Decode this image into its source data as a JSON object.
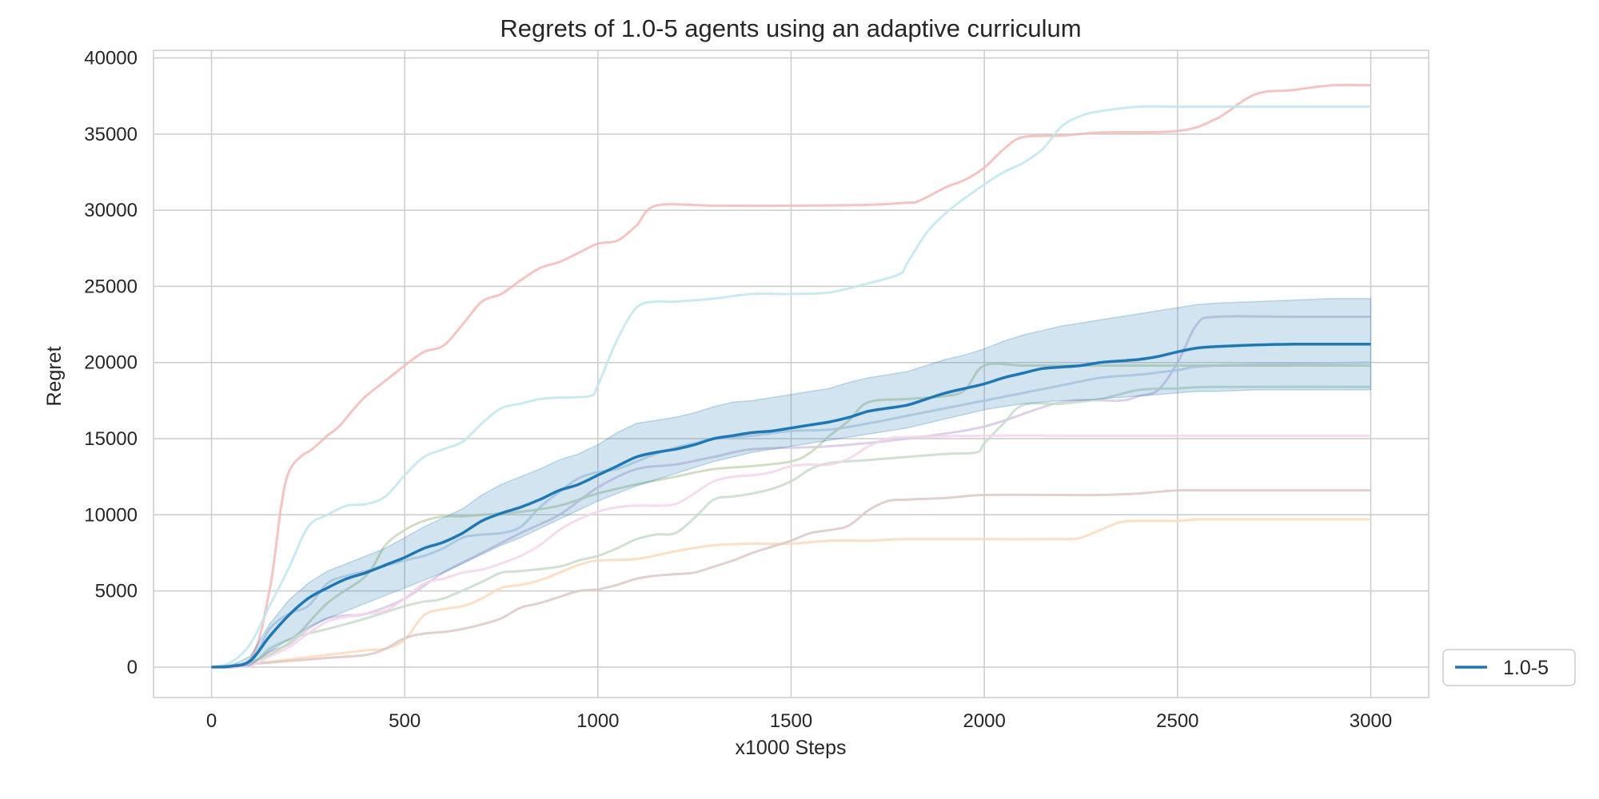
{
  "chart_data": {
    "type": "line",
    "title": "Regrets of 1.0-5 agents using an adaptive curriculum",
    "xlabel": "x1000 Steps",
    "ylabel": "Regret",
    "xlim": [
      -150,
      3150
    ],
    "ylim": [
      -2000,
      40500
    ],
    "xticks": [
      0,
      500,
      1000,
      1500,
      2000,
      2500,
      3000
    ],
    "yticks": [
      0,
      5000,
      10000,
      15000,
      20000,
      25000,
      30000,
      35000,
      40000
    ],
    "grid": true,
    "legend": {
      "placement": "lower-right-outside",
      "entries": [
        "1.0-5"
      ]
    },
    "mean_series": {
      "name": "1.0-5",
      "color": "#1f77b4",
      "x": [
        0,
        50,
        100,
        150,
        200,
        250,
        300,
        350,
        400,
        450,
        500,
        550,
        600,
        650,
        700,
        750,
        800,
        850,
        900,
        950,
        1000,
        1050,
        1100,
        1150,
        1200,
        1250,
        1300,
        1350,
        1400,
        1450,
        1500,
        1550,
        1600,
        1650,
        1700,
        1750,
        1800,
        1850,
        1900,
        1950,
        2000,
        2050,
        2100,
        2150,
        2200,
        2250,
        2300,
        2350,
        2400,
        2450,
        2500,
        2550,
        2600,
        2700,
        2800,
        2900,
        3000
      ],
      "y": [
        0,
        50,
        400,
        2000,
        3400,
        4500,
        5200,
        5800,
        6200,
        6700,
        7200,
        7800,
        8200,
        8800,
        9600,
        10100,
        10500,
        11000,
        11600,
        12000,
        12600,
        13200,
        13800,
        14100,
        14300,
        14600,
        15000,
        15200,
        15400,
        15500,
        15700,
        15900,
        16100,
        16400,
        16800,
        17000,
        17200,
        17600,
        18000,
        18300,
        18600,
        19000,
        19300,
        19600,
        19700,
        19800,
        20000,
        20100,
        20200,
        20400,
        20700,
        20950,
        21050,
        21150,
        21200,
        21200,
        21200
      ],
      "lower": [
        0,
        0,
        100,
        1000,
        1800,
        2600,
        3200,
        3700,
        4200,
        4700,
        5200,
        5700,
        6200,
        6800,
        7400,
        8000,
        8500,
        9100,
        9700,
        10300,
        10900,
        11400,
        11900,
        12300,
        12700,
        13100,
        13500,
        13800,
        14100,
        14300,
        14500,
        14700,
        14900,
        15100,
        15300,
        15500,
        15700,
        16000,
        16300,
        16600,
        16900,
        17100,
        17300,
        17400,
        17500,
        17500,
        17600,
        17700,
        17800,
        17900,
        18000,
        18100,
        18100,
        18200,
        18200,
        18200,
        18200
      ],
      "upper": [
        0,
        100,
        700,
        2800,
        4400,
        5500,
        6300,
        6800,
        7300,
        7800,
        8500,
        9200,
        9800,
        10400,
        11300,
        12000,
        12500,
        13000,
        13600,
        14000,
        14600,
        15400,
        16000,
        16200,
        16400,
        16700,
        17100,
        17400,
        17500,
        17700,
        17900,
        18100,
        18300,
        18700,
        19000,
        19200,
        19400,
        19800,
        20200,
        20500,
        20900,
        21400,
        21800,
        22100,
        22400,
        22600,
        22800,
        23000,
        23200,
        23400,
        23600,
        23800,
        23900,
        24000,
        24100,
        24200,
        24200
      ]
    },
    "runs": [
      {
        "color": "#f4b9b9",
        "x": [
          0,
          100,
          150,
          180,
          200,
          230,
          260,
          300,
          330,
          370,
          400,
          450,
          500,
          550,
          600,
          650,
          700,
          750,
          800,
          850,
          900,
          950,
          1000,
          1050,
          1100,
          1150,
          1300,
          1500,
          1700,
          1800,
          1830,
          1900,
          1950,
          2000,
          2050,
          2100,
          2200,
          2300,
          2500,
          2600,
          2700,
          2800,
          2900,
          3000
        ],
        "y": [
          0,
          500,
          5000,
          10500,
          12800,
          13800,
          14300,
          15200,
          15800,
          17000,
          17800,
          18800,
          19800,
          20700,
          21100,
          22500,
          24000,
          24500,
          25400,
          26200,
          26600,
          27200,
          27800,
          28000,
          29000,
          30300,
          30300,
          30300,
          30350,
          30500,
          30600,
          31500,
          32000,
          32800,
          34000,
          34800,
          34900,
          35100,
          35200,
          36000,
          37600,
          37900,
          38200,
          38200
        ]
      },
      {
        "color": "#bfe6ee",
        "x": [
          0,
          50,
          100,
          150,
          200,
          250,
          300,
          350,
          400,
          450,
          500,
          550,
          600,
          650,
          700,
          750,
          800,
          850,
          900,
          980,
          1000,
          1050,
          1100,
          1150,
          1200,
          1300,
          1400,
          1500,
          1600,
          1700,
          1780,
          1800,
          1850,
          1900,
          1950,
          2000,
          2050,
          2100,
          2150,
          2200,
          2250,
          2300,
          2400,
          2500,
          2600,
          2800,
          3000
        ],
        "y": [
          0,
          300,
          1500,
          4000,
          6500,
          9200,
          10000,
          10600,
          10700,
          11200,
          12600,
          13800,
          14300,
          14800,
          16000,
          17000,
          17300,
          17600,
          17700,
          17800,
          18500,
          21500,
          23600,
          24000,
          24000,
          24200,
          24500,
          24500,
          24600,
          25200,
          25800,
          26500,
          28500,
          29800,
          30800,
          31700,
          32500,
          33100,
          34000,
          35500,
          36200,
          36500,
          36800,
          36800,
          36800,
          36800,
          36800
        ]
      },
      {
        "color": "#d8c8e6",
        "x": [
          0,
          100,
          150,
          200,
          250,
          300,
          350,
          400,
          500,
          600,
          700,
          800,
          900,
          1000,
          1100,
          1200,
          1300,
          1400,
          1600,
          1800,
          2000,
          2200,
          2350,
          2400,
          2450,
          2500,
          2550,
          2600,
          2800,
          3000
        ],
        "y": [
          0,
          300,
          1000,
          1500,
          2500,
          3200,
          3400,
          3500,
          4500,
          6200,
          7500,
          8800,
          10000,
          11800,
          13000,
          13300,
          13800,
          14300,
          14500,
          15000,
          15800,
          17400,
          17500,
          17800,
          18200,
          20000,
          22500,
          23000,
          23000,
          23000
        ]
      },
      {
        "color": "#c6dccb",
        "x": [
          0,
          100,
          150,
          200,
          250,
          300,
          400,
          500,
          550,
          600,
          700,
          750,
          800,
          900,
          950,
          1000,
          1050,
          1100,
          1150,
          1200,
          1250,
          1300,
          1350,
          1400,
          1450,
          1500,
          1550,
          1600,
          1700,
          1800,
          1900,
          1980,
          2000,
          2050,
          2100,
          2200,
          2300,
          2400,
          2500,
          2600,
          3000
        ],
        "y": [
          0,
          200,
          1200,
          1800,
          2200,
          2500,
          3200,
          4000,
          4300,
          4500,
          5600,
          6200,
          6300,
          6600,
          7000,
          7300,
          7800,
          8400,
          8700,
          8800,
          9800,
          11000,
          11200,
          11400,
          11700,
          12200,
          13000,
          13400,
          13600,
          13800,
          14000,
          14100,
          14700,
          16000,
          17200,
          17300,
          17600,
          18200,
          18300,
          18400,
          18400
        ]
      },
      {
        "color": "#fbd9bb",
        "x": [
          0,
          100,
          200,
          300,
          400,
          450,
          500,
          550,
          600,
          650,
          700,
          750,
          800,
          850,
          900,
          950,
          1000,
          1100,
          1200,
          1300,
          1400,
          1500,
          1600,
          1700,
          1800,
          2000,
          2200,
          2250,
          2300,
          2350,
          2400,
          2500,
          2550,
          2600,
          3000
        ],
        "y": [
          0,
          200,
          500,
          800,
          1100,
          1200,
          1800,
          3400,
          3800,
          4000,
          4500,
          5200,
          5400,
          5700,
          6200,
          6700,
          7000,
          7100,
          7600,
          8000,
          8100,
          8100,
          8300,
          8300,
          8400,
          8400,
          8400,
          8500,
          9000,
          9500,
          9600,
          9600,
          9700,
          9700,
          9700
        ]
      },
      {
        "color": "#dcc8c4",
        "x": [
          0,
          100,
          200,
          300,
          400,
          450,
          500,
          550,
          600,
          650,
          700,
          750,
          800,
          850,
          900,
          950,
          1000,
          1050,
          1100,
          1150,
          1200,
          1250,
          1300,
          1350,
          1400,
          1450,
          1500,
          1550,
          1600,
          1650,
          1700,
          1750,
          1800,
          1900,
          2000,
          2200,
          2300,
          2400,
          2500,
          2600,
          3000
        ],
        "y": [
          0,
          200,
          400,
          600,
          800,
          1200,
          1900,
          2200,
          2300,
          2500,
          2800,
          3200,
          3900,
          4200,
          4600,
          5000,
          5100,
          5400,
          5800,
          6000,
          6100,
          6200,
          6600,
          7000,
          7500,
          7900,
          8300,
          8800,
          9000,
          9300,
          10300,
          10900,
          11000,
          11100,
          11300,
          11300,
          11300,
          11400,
          11600,
          11600,
          11600
        ]
      },
      {
        "color": "#f5d3ea",
        "x": [
          0,
          100,
          150,
          200,
          250,
          300,
          350,
          400,
          450,
          500,
          550,
          600,
          650,
          700,
          750,
          800,
          850,
          900,
          950,
          1000,
          1050,
          1100,
          1150,
          1200,
          1250,
          1300,
          1350,
          1400,
          1450,
          1500,
          1550,
          1600,
          1650,
          1700,
          1750,
          1800,
          2000,
          2200,
          2400,
          2600,
          3000
        ],
        "y": [
          0,
          100,
          700,
          1300,
          2200,
          3000,
          3300,
          3500,
          3700,
          4500,
          5500,
          5800,
          6200,
          6400,
          6800,
          7300,
          8000,
          9000,
          9700,
          10200,
          10500,
          10600,
          10600,
          10700,
          11400,
          12200,
          12500,
          12600,
          12800,
          13200,
          13300,
          13300,
          13700,
          14500,
          15000,
          15100,
          15200,
          15200,
          15200,
          15200,
          15200
        ]
      },
      {
        "color": "#c7d7ea",
        "x": [
          0,
          100,
          150,
          200,
          250,
          300,
          350,
          400,
          500,
          550,
          600,
          650,
          700,
          750,
          800,
          850,
          900,
          950,
          1000,
          1050,
          1100,
          1150,
          1200,
          1250,
          1300,
          1400,
          1500,
          1600,
          1700,
          1800,
          1900,
          2000,
          2100,
          2200,
          2300,
          2400,
          2500,
          2600,
          3000
        ],
        "y": [
          0,
          400,
          2500,
          3500,
          4000,
          5500,
          6000,
          6300,
          7000,
          7300,
          7800,
          8500,
          8700,
          8800,
          9200,
          10500,
          11500,
          12400,
          12800,
          13000,
          13500,
          14000,
          14400,
          14700,
          15000,
          15200,
          15500,
          15600,
          16000,
          16500,
          17000,
          17500,
          18000,
          18500,
          19000,
          19200,
          19500,
          19800,
          20000
        ]
      },
      {
        "color": "#c8d9b9",
        "x": [
          0,
          100,
          200,
          300,
          400,
          450,
          500,
          550,
          600,
          650,
          700,
          800,
          900,
          1000,
          1100,
          1200,
          1300,
          1400,
          1500,
          1550,
          1600,
          1650,
          1700,
          1800,
          1900,
          1950,
          2000,
          2100,
          2200,
          2500,
          3000
        ],
        "y": [
          0,
          300,
          1600,
          4200,
          6000,
          8000,
          9000,
          9600,
          9900,
          9900,
          10000,
          10200,
          10600,
          11400,
          12000,
          12500,
          13000,
          13200,
          13500,
          14100,
          15200,
          16200,
          17400,
          17600,
          17800,
          18200,
          19800,
          19800,
          19800,
          19800,
          19800
        ]
      }
    ]
  }
}
